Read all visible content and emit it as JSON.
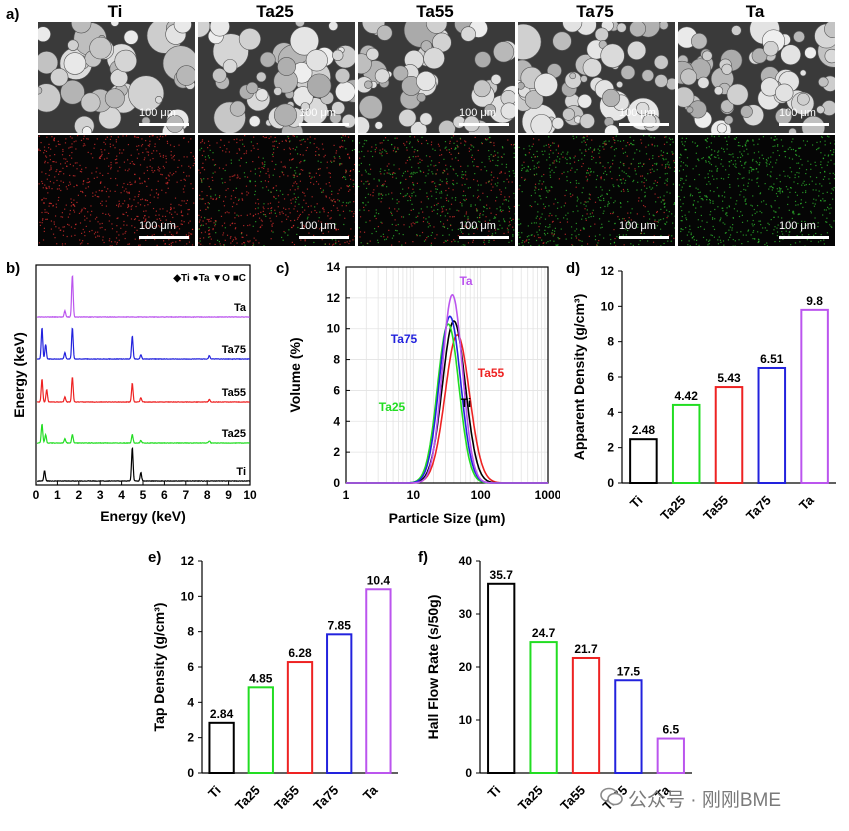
{
  "panels": {
    "a": "a)",
    "b": "b)",
    "c": "c)",
    "d": "d)",
    "e": "e)",
    "f": "f)"
  },
  "samples": [
    "Ti",
    "Ta25",
    "Ta55",
    "Ta75",
    "Ta"
  ],
  "scale_bar_label": "100 μm",
  "sem_colors": {
    "sem_bg": "#3a3a3a",
    "particle": "#d8d8d8"
  },
  "eds_colors": {
    "ti_dot": "#e03030",
    "ta_dot": "#30c030",
    "bg": "#050505"
  },
  "colors": {
    "Ti": "#000000",
    "Ta25": "#22dd22",
    "Ta55": "#ee2222",
    "Ta75": "#2222dd",
    "Ta": "#bb55ee"
  },
  "watermark": "公众号 · 刚刚BME",
  "chart_data": [
    {
      "id": "b",
      "type": "line",
      "xlabel": "Energy (keV)",
      "ylabel": "Energy (keV)",
      "xlim": [
        0,
        10
      ],
      "xticks": [
        0,
        1,
        2,
        3,
        4,
        5,
        6,
        7,
        8,
        9,
        10
      ],
      "legend": "◆Ti ●Ta ▼O ■C",
      "series": [
        {
          "name": "Ta",
          "peaks": [
            [
              1.7,
              1.0
            ],
            [
              1.35,
              0.15
            ]
          ]
        },
        {
          "name": "Ta75",
          "peaks": [
            [
              0.28,
              0.75
            ],
            [
              0.45,
              0.35
            ],
            [
              1.35,
              0.15
            ],
            [
              1.7,
              0.75
            ],
            [
              4.5,
              0.55
            ],
            [
              4.9,
              0.1
            ],
            [
              8.1,
              0.08
            ]
          ]
        },
        {
          "name": "Ta55",
          "peaks": [
            [
              0.28,
              0.55
            ],
            [
              0.5,
              0.3
            ],
            [
              1.35,
              0.12
            ],
            [
              1.7,
              0.6
            ],
            [
              4.5,
              0.45
            ],
            [
              4.9,
              0.1
            ],
            [
              8.1,
              0.06
            ]
          ]
        },
        {
          "name": "Ta25",
          "peaks": [
            [
              0.28,
              0.45
            ],
            [
              0.45,
              0.2
            ],
            [
              1.35,
              0.1
            ],
            [
              1.7,
              0.2
            ],
            [
              4.5,
              0.2
            ],
            [
              4.9,
              0.06
            ],
            [
              8.1,
              0.05
            ]
          ]
        },
        {
          "name": "Ti",
          "peaks": [
            [
              0.4,
              0.25
            ],
            [
              4.5,
              0.8
            ],
            [
              4.9,
              0.2
            ]
          ]
        }
      ],
      "labels": [
        "Ta",
        "Ta75",
        "Ta55",
        "Ta25",
        "Ti"
      ]
    },
    {
      "id": "c",
      "type": "line",
      "xlabel": "Particle Size (μm)",
      "ylabel": "Volume (%)",
      "xscale": "log",
      "xlim": [
        1,
        1000
      ],
      "ylim": [
        0,
        14
      ],
      "xticks": [
        1,
        10,
        100,
        1000
      ],
      "yticks": [
        0,
        2,
        4,
        6,
        8,
        10,
        12,
        14
      ],
      "grid": true,
      "series": [
        {
          "name": "Ti",
          "mode": 40,
          "peak": 10.5,
          "sigma": 0.17
        },
        {
          "name": "Ta25",
          "mode": 33,
          "peak": 10.3,
          "sigma": 0.16
        },
        {
          "name": "Ta55",
          "mode": 45,
          "peak": 9.6,
          "sigma": 0.18
        },
        {
          "name": "Ta75",
          "mode": 35,
          "peak": 10.8,
          "sigma": 0.16
        },
        {
          "name": "Ta",
          "mode": 38,
          "peak": 12.2,
          "sigma": 0.15
        }
      ]
    },
    {
      "id": "d",
      "type": "bar",
      "ylabel": "Apparent Density (g/cm³)",
      "categories": [
        "Ti",
        "Ta25",
        "Ta55",
        "Ta75",
        "Ta"
      ],
      "values": [
        2.48,
        4.42,
        5.43,
        6.51,
        9.8
      ],
      "value_labels": [
        "2.48",
        "4.42",
        "5.43",
        "6.51",
        "9.8"
      ],
      "ylim": [
        0,
        12
      ],
      "yticks": [
        0,
        2,
        4,
        6,
        8,
        10,
        12
      ]
    },
    {
      "id": "e",
      "type": "bar",
      "ylabel": "Tap Density (g/cm³)",
      "categories": [
        "Ti",
        "Ta25",
        "Ta55",
        "Ta75",
        "Ta"
      ],
      "values": [
        2.84,
        4.85,
        6.28,
        7.85,
        10.4
      ],
      "value_labels": [
        "2.84",
        "4.85",
        "6.28",
        "7.85",
        "10.4"
      ],
      "ylim": [
        0,
        12
      ],
      "yticks": [
        0,
        2,
        4,
        6,
        8,
        10,
        12
      ]
    },
    {
      "id": "f",
      "type": "bar",
      "ylabel": "Hall Flow Rate (s/50g)",
      "categories": [
        "Ti",
        "Ta25",
        "Ta55",
        "Ta75",
        "Ta"
      ],
      "values": [
        35.7,
        24.7,
        21.7,
        17.5,
        6.5
      ],
      "value_labels": [
        "35.7",
        "24.7",
        "21.7",
        "17.5",
        "6.5"
      ],
      "ylim": [
        0,
        40
      ],
      "yticks": [
        0,
        10,
        20,
        30,
        40
      ]
    }
  ]
}
